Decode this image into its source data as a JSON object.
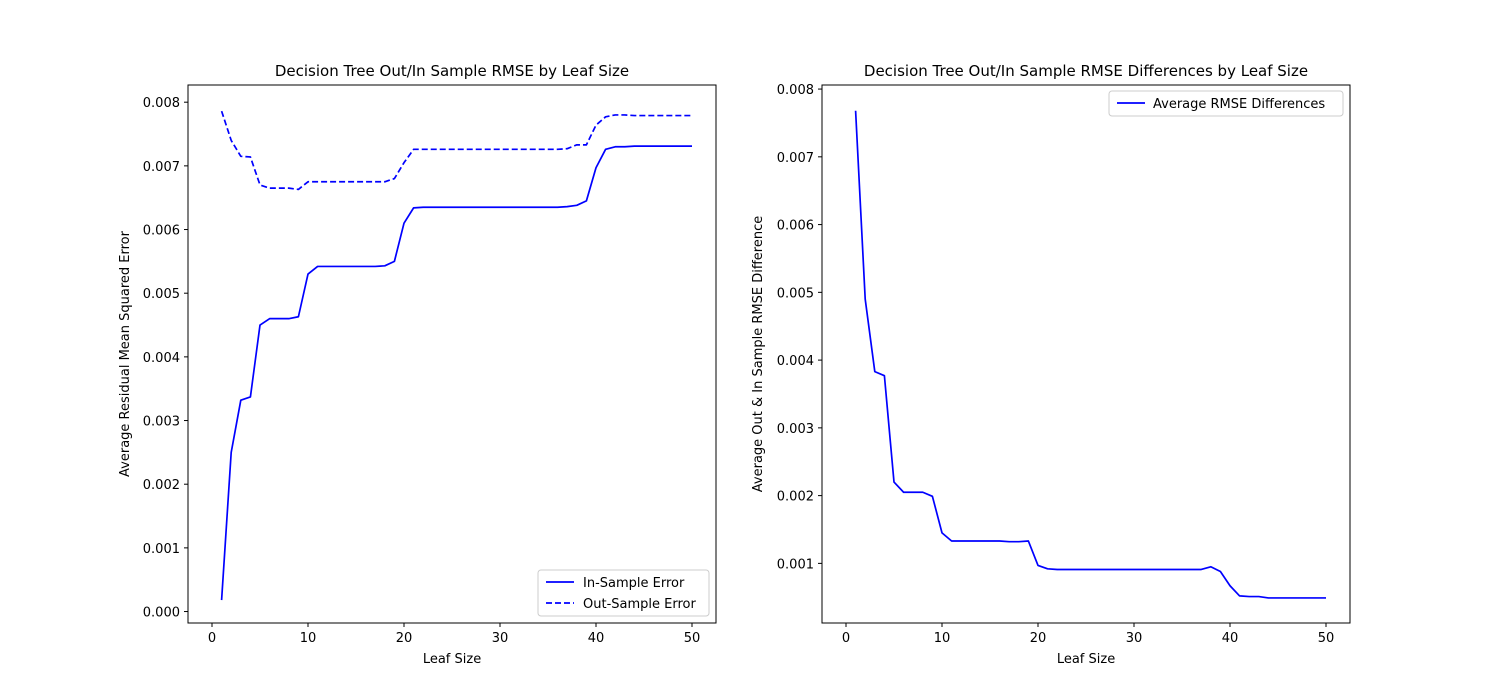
{
  "chart_data": [
    {
      "type": "line",
      "title": "Decision Tree Out/In Sample RMSE by Leaf Size",
      "xlabel": "Leaf Size",
      "ylabel": "Average Residual Mean Squared Error",
      "xlim": [
        -2.5,
        52.5
      ],
      "ylim": [
        -0.00018,
        0.00827
      ],
      "xticks": [
        0,
        10,
        20,
        30,
        40,
        50
      ],
      "yticks": [
        0.0,
        0.001,
        0.002,
        0.003,
        0.004,
        0.005,
        0.006,
        0.007,
        0.008
      ],
      "ytick_decimals": 3,
      "grid": false,
      "legend_position": "lower-right",
      "x": [
        1,
        2,
        3,
        4,
        5,
        6,
        7,
        8,
        9,
        10,
        11,
        12,
        13,
        14,
        15,
        16,
        17,
        18,
        19,
        20,
        21,
        22,
        23,
        24,
        25,
        26,
        27,
        28,
        29,
        30,
        31,
        32,
        33,
        34,
        35,
        36,
        37,
        38,
        39,
        40,
        41,
        42,
        43,
        44,
        45,
        46,
        47,
        48,
        49,
        50
      ],
      "series": [
        {
          "name": "In-Sample Error",
          "color": "#0000ff",
          "dash": "solid",
          "values": [
            0.00018,
            0.0025,
            0.00332,
            0.00337,
            0.0045,
            0.0046,
            0.0046,
            0.0046,
            0.00463,
            0.0053,
            0.00542,
            0.00542,
            0.00542,
            0.00542,
            0.00542,
            0.00542,
            0.00542,
            0.00543,
            0.0055,
            0.0061,
            0.00634,
            0.00635,
            0.00635,
            0.00635,
            0.00635,
            0.00635,
            0.00635,
            0.00635,
            0.00635,
            0.00635,
            0.00635,
            0.00635,
            0.00635,
            0.00635,
            0.00635,
            0.00635,
            0.00636,
            0.00638,
            0.00645,
            0.00697,
            0.00726,
            0.0073,
            0.0073,
            0.00731,
            0.00731,
            0.00731,
            0.00731,
            0.00731,
            0.00731,
            0.00731
          ]
        },
        {
          "name": "Out-Sample Error",
          "color": "#0000ff",
          "dash": "dashed",
          "values": [
            0.00786,
            0.0074,
            0.00715,
            0.00714,
            0.0067,
            0.00665,
            0.00665,
            0.00665,
            0.00663,
            0.00675,
            0.00675,
            0.00675,
            0.00675,
            0.00675,
            0.00675,
            0.00675,
            0.00675,
            0.00675,
            0.0068,
            0.00705,
            0.00726,
            0.00726,
            0.00726,
            0.00726,
            0.00726,
            0.00726,
            0.00726,
            0.00726,
            0.00726,
            0.00726,
            0.00726,
            0.00726,
            0.00726,
            0.00726,
            0.00726,
            0.00726,
            0.00727,
            0.00733,
            0.00733,
            0.00764,
            0.00777,
            0.0078,
            0.0078,
            0.00779,
            0.00779,
            0.00779,
            0.00779,
            0.00779,
            0.00779,
            0.00779
          ]
        }
      ]
    },
    {
      "type": "line",
      "title": "Decision Tree Out/In Sample RMSE Differences by Leaf Size",
      "xlabel": "Leaf Size",
      "ylabel": "Average Out & In Sample RMSE Difference",
      "xlim": [
        -2.5,
        52.5
      ],
      "ylim": [
        0.00012,
        0.00806
      ],
      "xticks": [
        0,
        10,
        20,
        30,
        40,
        50
      ],
      "yticks": [
        0.001,
        0.002,
        0.003,
        0.004,
        0.005,
        0.006,
        0.007,
        0.008
      ],
      "ytick_decimals": 3,
      "grid": false,
      "legend_position": "upper-right",
      "x": [
        1,
        2,
        3,
        4,
        5,
        6,
        7,
        8,
        9,
        10,
        11,
        12,
        13,
        14,
        15,
        16,
        17,
        18,
        19,
        20,
        21,
        22,
        23,
        24,
        25,
        26,
        27,
        28,
        29,
        30,
        31,
        32,
        33,
        34,
        35,
        36,
        37,
        38,
        39,
        40,
        41,
        42,
        43,
        44,
        45,
        46,
        47,
        48,
        49,
        50
      ],
      "series": [
        {
          "name": "Average RMSE Differences",
          "color": "#0000ff",
          "dash": "solid",
          "values": [
            0.00768,
            0.0049,
            0.00383,
            0.00377,
            0.0022,
            0.00205,
            0.00205,
            0.00205,
            0.00199,
            0.00145,
            0.00133,
            0.00133,
            0.00133,
            0.00133,
            0.00133,
            0.00133,
            0.00132,
            0.00132,
            0.00133,
            0.00097,
            0.00092,
            0.00091,
            0.00091,
            0.00091,
            0.00091,
            0.00091,
            0.00091,
            0.00091,
            0.00091,
            0.00091,
            0.00091,
            0.00091,
            0.00091,
            0.00091,
            0.00091,
            0.00091,
            0.00091,
            0.00095,
            0.00088,
            0.00067,
            0.00052,
            0.00051,
            0.00051,
            0.00049,
            0.00049,
            0.00049,
            0.00049,
            0.00049,
            0.00049,
            0.00049
          ]
        }
      ]
    }
  ]
}
